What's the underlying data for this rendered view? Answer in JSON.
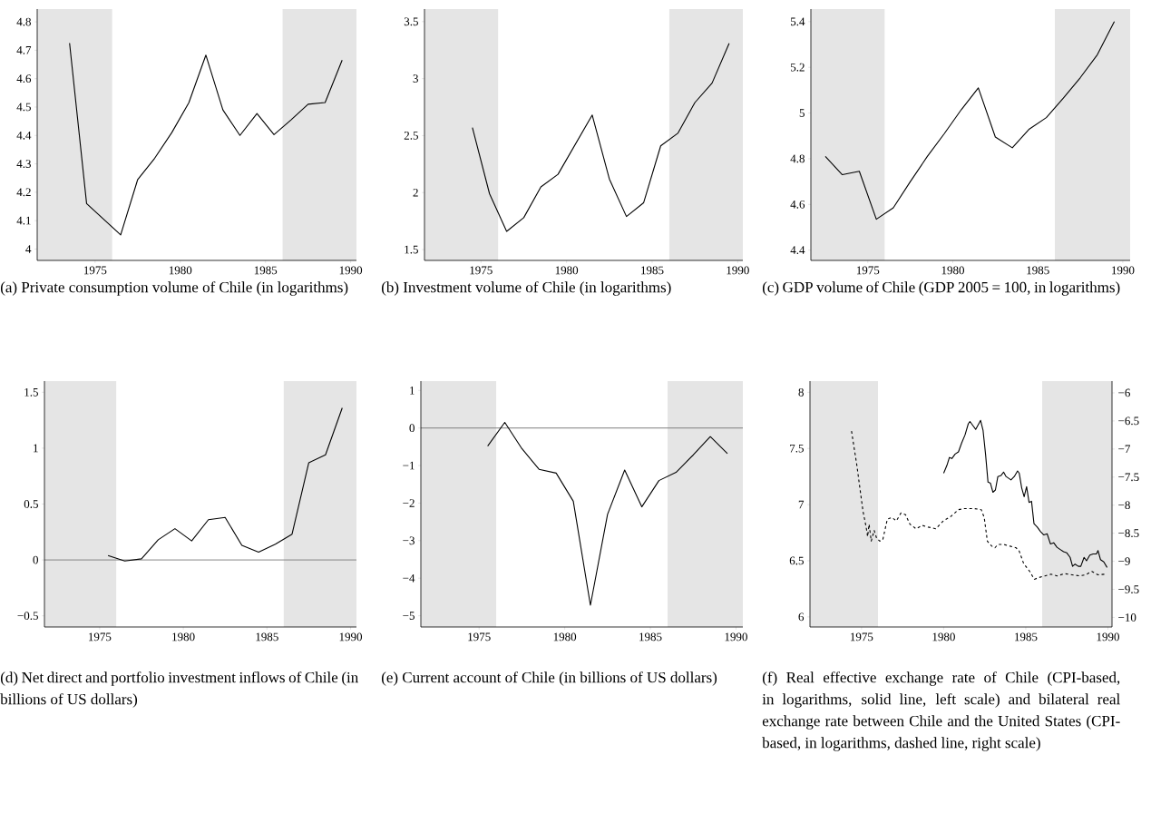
{
  "chart_data": [
    {
      "type": "line",
      "title": "(a) Private consumption volume of Chile (in logarithms)",
      "xlim": [
        1971.6,
        1990.34
      ],
      "ylim": [
        3.96,
        4.845
      ],
      "xticks": [
        1975,
        1980,
        1985,
        1990
      ],
      "yticks": [
        4,
        4.1,
        4.2,
        4.3,
        4.4,
        4.5,
        4.6,
        4.7,
        4.8
      ],
      "bands": [
        {
          "axis": "x",
          "from": 1971.6,
          "to": 1976,
          "color": "#e5e5e5"
        },
        {
          "axis": "x",
          "from": 1986,
          "to": 1990.34,
          "color": "#e5e5e5"
        }
      ],
      "series": [
        {
          "color": "#000000",
          "x": [
            1973.5,
            1974.5,
            1975.5,
            1976.5,
            1977.5,
            1978.5,
            1979.5,
            1980.5,
            1981.5,
            1982.5,
            1983.5,
            1984.5,
            1985.5,
            1986.5,
            1987.5,
            1988.5,
            1989.5
          ],
          "values": [
            4.725,
            4.16,
            4.105,
            4.05,
            4.245,
            4.32,
            4.41,
            4.515,
            4.683,
            4.49,
            4.4,
            4.477,
            4.403,
            4.455,
            4.51,
            4.516,
            4.665
          ]
        }
      ]
    },
    {
      "type": "line",
      "title": "(b) Investment volume of Chile (in logarithms)",
      "xlim": [
        1971.7,
        1990.3
      ],
      "ylim": [
        1.405,
        3.61
      ],
      "xticks": [
        1975,
        1980,
        1985,
        1990
      ],
      "yticks": [
        1.5,
        2,
        2.5,
        3,
        3.5
      ],
      "bands": [
        {
          "axis": "x",
          "from": 1971.7,
          "to": 1976,
          "color": "#e5e5e5"
        },
        {
          "axis": "x",
          "from": 1986,
          "to": 1990.3,
          "color": "#e5e5e5"
        }
      ],
      "series": [
        {
          "color": "#000000",
          "x": [
            1974.5,
            1975.5,
            1976.5,
            1977.5,
            1978.5,
            1979.5,
            1980.5,
            1981.5,
            1982.5,
            1983.5,
            1984.5,
            1985.5,
            1986.5,
            1987.5,
            1988.5,
            1989.5
          ],
          "values": [
            2.57,
            1.99,
            1.66,
            1.78,
            2.05,
            2.16,
            2.42,
            2.68,
            2.12,
            1.79,
            1.91,
            2.41,
            2.52,
            2.79,
            2.96,
            3.31
          ]
        }
      ]
    },
    {
      "type": "line",
      "title": "(c) GDP volume of Chile (GDP 2005 = 100, in logarithms)",
      "xlim": [
        1971.65,
        1990.43
      ],
      "ylim": [
        4.355,
        5.455
      ],
      "xticks": [
        1975,
        1980,
        1985,
        1990
      ],
      "yticks": [
        4.4,
        4.6,
        4.8,
        5,
        5.2,
        5.4
      ],
      "bands": [
        {
          "axis": "x",
          "from": 1971.65,
          "to": 1976,
          "color": "#e5e5e5"
        },
        {
          "axis": "x",
          "from": 1986,
          "to": 1990.43,
          "color": "#e5e5e5"
        }
      ],
      "series": [
        {
          "color": "#000000",
          "x": [
            1972.5,
            1973.5,
            1974.5,
            1975.5,
            1976.5,
            1977.5,
            1978.5,
            1979.5,
            1980.5,
            1981.5,
            1982.5,
            1983.5,
            1984.5,
            1985.5,
            1986.5,
            1987.5,
            1988.5,
            1989.5
          ],
          "values": [
            4.81,
            4.73,
            4.745,
            4.535,
            4.585,
            4.7,
            4.81,
            4.91,
            5.015,
            5.11,
            4.895,
            4.848,
            4.93,
            4.98,
            5.065,
            5.155,
            5.255,
            5.4
          ]
        }
      ]
    },
    {
      "type": "line",
      "title": "(d) Net direct and portfolio investment inflows of Chile (in billions of US dollars)",
      "xlim": [
        1971.7,
        1990.35
      ],
      "ylim": [
        -0.6,
        1.6
      ],
      "xticks": [
        1975,
        1980,
        1985,
        1990
      ],
      "yticks": [
        {
          "value": -0.5,
          "label": "−0.5"
        },
        0,
        0.5,
        1,
        1.5
      ],
      "bands": [
        {
          "axis": "x",
          "from": 1971.7,
          "to": 1976,
          "color": "#e5e5e5"
        },
        {
          "axis": "x",
          "from": 1986,
          "to": 1990.35,
          "color": "#e5e5e5"
        }
      ],
      "ref_lines": [
        {
          "axis": "y",
          "value": 0,
          "color": "#777777"
        }
      ],
      "series": [
        {
          "color": "#000000",
          "x": [
            1975.5,
            1976.5,
            1977.5,
            1978.5,
            1979.5,
            1980.5,
            1981.5,
            1982.5,
            1983.5,
            1984.5,
            1985.5,
            1986.5,
            1987.5,
            1988.5,
            1989.5
          ],
          "values": [
            0.04,
            -0.01,
            0.01,
            0.18,
            0.28,
            0.17,
            0.36,
            0.38,
            0.13,
            0.07,
            0.14,
            0.23,
            0.87,
            0.94,
            1.36
          ]
        }
      ]
    },
    {
      "type": "line",
      "title": "(e) Current account of Chile (in billions of US dollars)",
      "xlim": [
        1971.6,
        1990.4
      ],
      "ylim": [
        -5.3,
        1.25
      ],
      "xticks": [
        1975,
        1980,
        1985,
        1990
      ],
      "yticks": [
        {
          "value": -5,
          "label": "−5"
        },
        {
          "value": -4,
          "label": "−4"
        },
        {
          "value": -3,
          "label": "−3"
        },
        {
          "value": -2,
          "label": "−2"
        },
        {
          "value": -1,
          "label": "−1"
        },
        0,
        1
      ],
      "bands": [
        {
          "axis": "x",
          "from": 1971.6,
          "to": 1976,
          "color": "#e5e5e5"
        },
        {
          "axis": "x",
          "from": 1986,
          "to": 1990.4,
          "color": "#e5e5e5"
        }
      ],
      "ref_lines": [
        {
          "axis": "y",
          "value": 0,
          "color": "#777777"
        }
      ],
      "series": [
        {
          "color": "#000000",
          "x": [
            1975.5,
            1976.5,
            1977.5,
            1978.5,
            1979.5,
            1980.5,
            1981.5,
            1982.5,
            1983.5,
            1984.5,
            1985.5,
            1986.5,
            1987.5,
            1988.5,
            1989.5
          ],
          "values": [
            -0.48,
            0.15,
            -0.55,
            -1.1,
            -1.2,
            -1.95,
            -4.72,
            -2.3,
            -1.12,
            -2.1,
            -1.4,
            -1.18,
            -0.72,
            -0.23,
            -0.68
          ]
        }
      ]
    },
    {
      "type": "line",
      "title": "(f) Real effective exchange rate of Chile (CPI-based, in logarithms, solid line, left scale) and bilateral real exchange rate between Chile and the United States (CPI-based, in logarithms, dashed line, right scale)",
      "xlim": [
        1971.86,
        1990.25
      ],
      "ylim": [
        5.91,
        8.1
      ],
      "y2lim": [
        -10.17,
        -5.79
      ],
      "xticks": [
        1975,
        1980,
        1985,
        1990
      ],
      "yticks": [
        6,
        6.5,
        7,
        7.5,
        8
      ],
      "y2ticks": [
        {
          "value": -10,
          "label": "−10"
        },
        {
          "value": -9.5,
          "label": "−9.5"
        },
        {
          "value": -9,
          "label": "−9"
        },
        {
          "value": -8.5,
          "label": "−8.5"
        },
        {
          "value": -8,
          "label": "−8"
        },
        {
          "value": -7.5,
          "label": "−7.5"
        },
        {
          "value": -7,
          "label": "−7"
        },
        {
          "value": -6.5,
          "label": "−6.5"
        },
        {
          "value": -6,
          "label": "−6"
        }
      ],
      "bands": [
        {
          "axis": "x",
          "from": 1971.86,
          "to": 1976,
          "color": "#e5e5e5"
        },
        {
          "axis": "x",
          "from": 1986,
          "to": 1990.25,
          "color": "#e5e5e5"
        }
      ],
      "series": [
        {
          "color": "#000000",
          "line_style": "solid",
          "x": [
            1980.0,
            1980.2,
            1980.35,
            1980.5,
            1980.7,
            1980.9,
            1981.1,
            1981.3,
            1981.5,
            1981.6,
            1981.8,
            1981.95,
            1982.1,
            1982.25,
            1982.4,
            1982.55,
            1982.7,
            1982.85,
            1983.0,
            1983.15,
            1983.3,
            1983.5,
            1983.65,
            1983.8,
            1984.1,
            1984.3,
            1984.5,
            1984.6,
            1984.75,
            1984.9,
            1985.05,
            1985.2,
            1985.35,
            1985.5,
            1985.7,
            1985.9,
            1986.1,
            1986.3,
            1986.5,
            1986.7,
            1986.9,
            1987.1,
            1987.3,
            1987.5,
            1987.7,
            1987.85,
            1988.0,
            1988.2,
            1988.35,
            1988.55,
            1988.7,
            1988.9,
            1989.1,
            1989.3,
            1989.4,
            1989.55,
            1989.75,
            1989.95
          ],
          "values": [
            7.28,
            7.35,
            7.42,
            7.41,
            7.45,
            7.47,
            7.55,
            7.62,
            7.72,
            7.74,
            7.7,
            7.67,
            7.71,
            7.75,
            7.66,
            7.45,
            7.2,
            7.19,
            7.11,
            7.13,
            7.25,
            7.26,
            7.29,
            7.25,
            7.22,
            7.25,
            7.3,
            7.28,
            7.15,
            7.07,
            7.16,
            7.02,
            7.03,
            6.83,
            6.8,
            6.76,
            6.73,
            6.74,
            6.65,
            6.66,
            6.62,
            6.6,
            6.58,
            6.57,
            6.53,
            6.45,
            6.47,
            6.45,
            6.45,
            6.53,
            6.5,
            6.55,
            6.56,
            6.56,
            6.59,
            6.51,
            6.49,
            6.44
          ]
        },
        {
          "color": "#000000",
          "line_style": "dashed",
          "axis": "y2",
          "x": [
            1974.39,
            1974.72,
            1974.91,
            1975.09,
            1975.28,
            1975.37,
            1975.46,
            1975.59,
            1975.77,
            1975.92,
            1976.11,
            1976.29,
            1976.57,
            1976.85,
            1977.12,
            1977.4,
            1977.68,
            1977.95,
            1978.32,
            1978.69,
            1979.06,
            1979.52,
            1979.98,
            1980.44,
            1980.9,
            1981.27,
            1981.83,
            1982.29,
            1982.47,
            1982.66,
            1982.93,
            1983.12,
            1983.3,
            1983.67,
            1984.04,
            1984.41,
            1984.59,
            1984.87,
            1985.24,
            1985.52,
            1985.79,
            1986.16,
            1986.53,
            1986.9,
            1987.36,
            1987.82,
            1988.28,
            1988.65,
            1989.02,
            1989.39,
            1989.85
          ],
          "values": [
            -6.68,
            -7.3,
            -7.72,
            -8.11,
            -8.39,
            -8.56,
            -8.34,
            -8.64,
            -8.45,
            -8.59,
            -8.64,
            -8.62,
            -8.25,
            -8.22,
            -8.28,
            -8.14,
            -8.17,
            -8.34,
            -8.42,
            -8.36,
            -8.39,
            -8.42,
            -8.28,
            -8.2,
            -8.08,
            -8.06,
            -8.06,
            -8.08,
            -8.22,
            -8.64,
            -8.73,
            -8.76,
            -8.7,
            -8.7,
            -8.73,
            -8.76,
            -8.81,
            -9.04,
            -9.18,
            -9.32,
            -9.29,
            -9.26,
            -9.23,
            -9.26,
            -9.22,
            -9.24,
            -9.26,
            -9.24,
            -9.18,
            -9.24,
            -9.23
          ]
        }
      ]
    }
  ]
}
